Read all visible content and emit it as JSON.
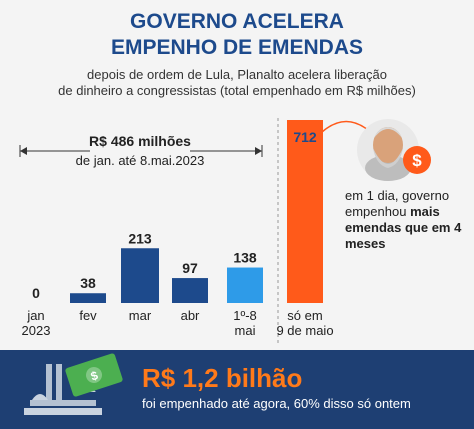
{
  "header": {
    "title_line1": "GOVERNO ACELERA",
    "title_line2": "EMPENHO DE EMENDAS",
    "subtitle_line1": "depois de ordem de Lula, Planalto acelera liberação",
    "subtitle_line2": "de dinheiro a congressistas (total empenhado em R$ milhões)"
  },
  "annotation": {
    "total": "R$ 486 milhões",
    "period": "de jan. até 8.mai.2023"
  },
  "side_note": {
    "part1": "em 1 dia, governo empenhou ",
    "bold": "mais emendas que em 4 meses"
  },
  "footer": {
    "amount": "R$ 1,2 bilhão",
    "text": "foi empenhado até agora, 60% disso só ontem"
  },
  "colors": {
    "dark_blue": "#1d4a8c",
    "light_blue": "#2e9be8",
    "orange": "#ff5a1a",
    "highlight": "#fde9a0",
    "footer_bg": "#1e3f73",
    "footer_amount": "#ff7a1a"
  },
  "icons": [
    "portrait-illustration",
    "dollar-coin-icon",
    "banknote-icon",
    "congress-building-icon"
  ],
  "chart_data": {
    "type": "bar",
    "categories": [
      [
        "jan",
        "2023"
      ],
      [
        "fev"
      ],
      [
        "mar"
      ],
      [
        "abr"
      ],
      [
        "1º-8",
        "mai"
      ],
      [
        "só em",
        "9 de maio"
      ]
    ],
    "values": [
      0,
      38,
      213,
      97,
      138,
      712
    ],
    "value_labels": [
      "0",
      "38",
      "213",
      "97",
      "138",
      "712"
    ],
    "bar_colors": [
      "#1d4a8c",
      "#1d4a8c",
      "#1d4a8c",
      "#1d4a8c",
      "#2e9be8",
      "#ff5a1a"
    ],
    "title": "GOVERNO ACELERA EMPENHO DE EMENDAS",
    "xlabel": "",
    "ylabel": "R$ milhões",
    "ylim": [
      0,
      712
    ],
    "grid": false
  }
}
